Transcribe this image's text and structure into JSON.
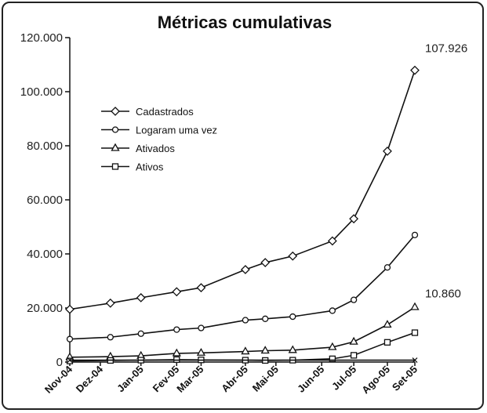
{
  "chart_data": {
    "type": "line",
    "title": "Métricas cumulativas",
    "categories": [
      "Nov-04",
      "Dez-04",
      "Jan-05",
      "Fev-05",
      "Mar-05",
      "Abr-05",
      "Mai-05",
      "Jun-05",
      "Jul-05",
      "Ago-05",
      "Set-05"
    ],
    "x_index": [
      0,
      1,
      2.33,
      3.5,
      4.3,
      5.75,
      6.75,
      8.25,
      9.3,
      10.4,
      11.3
    ],
    "x_range": [
      0,
      11.3
    ],
    "ylim": [
      0,
      120000
    ],
    "yticks": [
      0,
      20000,
      40000,
      60000,
      80000,
      100000,
      120000
    ],
    "ytick_labels": [
      "0",
      "20.000",
      "40.000",
      "60.000",
      "80.000",
      "100.000",
      "120.000"
    ],
    "grid": false,
    "legend_position": "top-left",
    "series": [
      {
        "name": "Cadastrados",
        "marker": "diamond",
        "x": [
          0,
          1.33,
          2.33,
          3.5,
          4.3,
          5.75,
          6.4,
          7.3,
          8.6,
          9.3,
          10.4,
          11.3
        ],
        "values": [
          19500,
          21800,
          23800,
          26000,
          27500,
          34200,
          36800,
          39200,
          44800,
          53000,
          78000,
          107926
        ]
      },
      {
        "name": "Logaram uma vez",
        "marker": "circle",
        "x": [
          0,
          1.33,
          2.33,
          3.5,
          4.3,
          5.75,
          6.4,
          7.3,
          8.6,
          9.3,
          10.4,
          11.3
        ],
        "values": [
          8500,
          9200,
          10500,
          12000,
          12600,
          15500,
          16000,
          16800,
          19000,
          23000,
          35000,
          47000
        ]
      },
      {
        "name": "Ativados",
        "marker": "triangle",
        "x": [
          0,
          1.33,
          2.33,
          3.5,
          4.3,
          5.75,
          6.4,
          7.3,
          8.6,
          9.3,
          10.4,
          11.3
        ],
        "values": [
          1800,
          2000,
          2300,
          3200,
          3400,
          3900,
          4200,
          4400,
          5500,
          7500,
          13800,
          20300
        ]
      },
      {
        "name": "Ativos",
        "marker": "square",
        "x": [
          0,
          1.33,
          2.33,
          3.5,
          4.3,
          5.75,
          6.4,
          7.3,
          8.6,
          9.3,
          10.4,
          11.3
        ],
        "values": [
          400,
          600,
          700,
          900,
          800,
          700,
          600,
          700,
          1200,
          2500,
          7300,
          10860
        ]
      },
      {
        "name": "",
        "marker": "x",
        "x": [
          0,
          11.3
        ],
        "values": [
          700,
          700
        ]
      }
    ],
    "annotations": [
      {
        "text": "107.926",
        "value": 107926
      },
      {
        "text": "10.860",
        "value": 10860
      }
    ]
  }
}
